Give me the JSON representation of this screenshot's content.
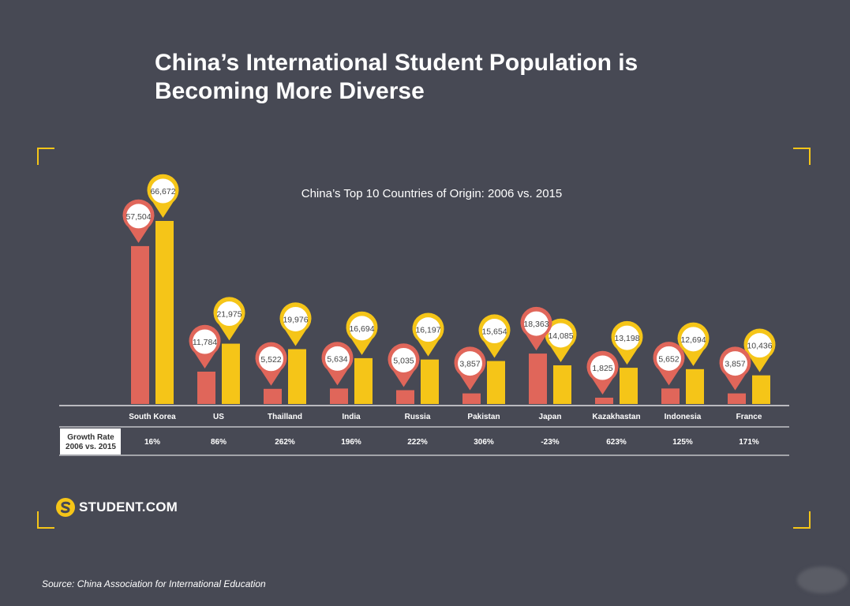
{
  "title_line1": "China’s International Student Population is",
  "title_line2": "Becoming More Diverse",
  "logo_text": "STUDENT.COM",
  "source": "Source: China Association for International Education",
  "colors": {
    "background": "#474954",
    "series_2006": "#e0665a",
    "series_2015": "#f5c518",
    "text": "#ffffff",
    "dark_text": "#444444"
  },
  "chart_data": {
    "type": "bar",
    "title": "China’s Top 10 Countries of Origin: 2006 vs. 2015",
    "categories": [
      "South Korea",
      "US",
      "Thailland",
      "India",
      "Russia",
      "Pakistan",
      "Japan",
      "Kazakhastan",
      "Indonesia",
      "France"
    ],
    "series": [
      {
        "values": [
          57504,
          11784,
          5522,
          5634,
          5035,
          3857,
          18363,
          1825,
          5652,
          3857
        ],
        "labels": [
          "57,504",
          "11,784",
          "5,522",
          "5,634",
          "5,035",
          "3,857",
          "18,363",
          "1,825",
          "5,652",
          "3,857"
        ],
        "color": "#e0665a"
      },
      {
        "values": [
          66672,
          21975,
          19976,
          16694,
          16197,
          15654,
          14085,
          13198,
          12694,
          10436
        ],
        "labels": [
          "66,672",
          "21,975",
          "19,976",
          "16,694",
          "16,197",
          "15,654",
          "14,085",
          "13,198",
          "12,694",
          "10,436"
        ],
        "color": "#f5c518"
      }
    ],
    "growth_row_label_line1": "Growth Rate",
    "growth_row_label_line2": "2006 vs. 2015",
    "growth_rates": [
      "16%",
      "86%",
      "262%",
      "196%",
      "222%",
      "306%",
      "-23%",
      "623%",
      "125%",
      "171%"
    ],
    "ylim": [
      0,
      66672
    ],
    "legend": "none",
    "grid": false
  }
}
